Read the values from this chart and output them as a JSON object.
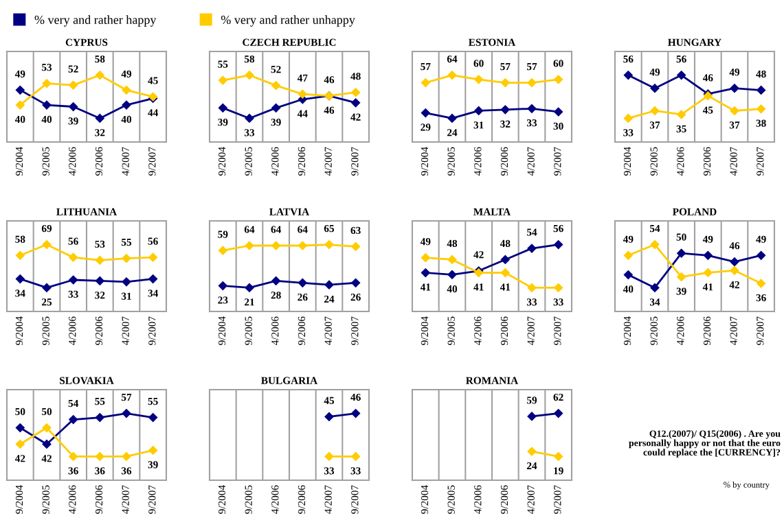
{
  "chart_data": [
    {
      "type": "line",
      "title": "CYPRUS",
      "categories": [
        "9/2004",
        "9/2005",
        "4/2006",
        "9/2006",
        "4/2007",
        "9/2007"
      ],
      "tick_labels": "x",
      "grid": "x",
      "marker": "diamond",
      "data_labels": true,
      "legend": "top right",
      "series": [
        {
          "name": "% very and rather happy",
          "color": "#000080",
          "values": [
            49,
            40,
            39,
            32,
            40,
            44
          ]
        },
        {
          "name": "% very and rather unhappy",
          "color": "#ffcc00",
          "values": [
            40,
            53,
            52,
            58,
            49,
            45
          ]
        }
      ]
    },
    {
      "type": "line",
      "title": "CZECH REPUBLIC",
      "categories": [
        "9/2004",
        "9/2005",
        "4/2006",
        "9/2006",
        "4/2007",
        "9/2007"
      ],
      "tick_labels": "x",
      "grid": "x",
      "marker": "diamond",
      "data_labels": true,
      "series": [
        {
          "color": "#000080",
          "values": [
            39,
            33,
            39,
            44,
            46,
            42
          ]
        },
        {
          "color": "#ffcc00",
          "values": [
            55,
            58,
            52,
            47,
            46,
            48
          ]
        }
      ]
    },
    {
      "type": "line",
      "title": "ESTONIA",
      "categories": [
        "9/2004",
        "9/2005",
        "4/2006",
        "9/2006",
        "4/2007",
        "9/2007"
      ],
      "tick_labels": "x",
      "grid": "x",
      "marker": "diamond",
      "data_labels": true,
      "series": [
        {
          "color": "#000080",
          "values": [
            29,
            24,
            31,
            32,
            33,
            30
          ]
        },
        {
          "color": "#ffcc00",
          "values": [
            57,
            64,
            60,
            57,
            57,
            60
          ]
        }
      ]
    },
    {
      "type": "line",
      "title": "HUNGARY",
      "categories": [
        "9/2004",
        "9/2005",
        "4/2006",
        "9/2006",
        "4/2007",
        "9/2007"
      ],
      "tick_labels": "x",
      "grid": "x",
      "marker": "diamond",
      "data_labels": true,
      "series": [
        {
          "color": "#000080",
          "values": [
            56,
            49,
            56,
            46,
            49,
            48
          ]
        },
        {
          "color": "#ffcc00",
          "values": [
            33,
            37,
            35,
            45,
            37,
            38
          ]
        }
      ]
    },
    {
      "type": "line",
      "title": "LITHUANIA",
      "categories": [
        "9/2004",
        "9/2005",
        "4/2006",
        "9/2006",
        "4/2007",
        "9/2007"
      ],
      "tick_labels": "x",
      "grid": "x",
      "marker": "diamond",
      "data_labels": true,
      "series": [
        {
          "color": "#000080",
          "values": [
            34,
            25,
            33,
            32,
            31,
            34
          ]
        },
        {
          "color": "#ffcc00",
          "values": [
            58,
            69,
            56,
            53,
            55,
            56
          ]
        }
      ]
    },
    {
      "type": "line",
      "title": "LATVIA",
      "categories": [
        "9/2004",
        "9/2005",
        "4/2006",
        "9/2006",
        "4/2007",
        "9/2007"
      ],
      "tick_labels": "x",
      "grid": "x",
      "marker": "diamond",
      "data_labels": true,
      "series": [
        {
          "color": "#000080",
          "values": [
            23,
            21,
            28,
            26,
            24,
            26
          ]
        },
        {
          "color": "#ffcc00",
          "values": [
            59,
            64,
            64,
            64,
            65,
            63
          ]
        }
      ]
    },
    {
      "type": "line",
      "title": "MALTA",
      "categories": [
        "9/2004",
        "9/2005",
        "4/2006",
        "9/2006",
        "4/2007",
        "9/2007"
      ],
      "tick_labels": "x",
      "grid": "x",
      "marker": "diamond",
      "data_labels": true,
      "series": [
        {
          "color": "#000080",
          "values": [
            41,
            40,
            42,
            48,
            54,
            56
          ]
        },
        {
          "color": "#ffcc00",
          "values": [
            49,
            48,
            41,
            41,
            33,
            33
          ]
        }
      ]
    },
    {
      "type": "line",
      "title": "POLAND",
      "categories": [
        "9/2004",
        "9/2005",
        "4/2006",
        "9/2006",
        "4/2007",
        "9/2007"
      ],
      "tick_labels": "x",
      "grid": "x",
      "marker": "diamond",
      "data_labels": true,
      "series": [
        {
          "color": "#000080",
          "values": [
            40,
            34,
            50,
            49,
            46,
            49
          ]
        },
        {
          "color": "#ffcc00",
          "values": [
            49,
            54,
            39,
            41,
            42,
            36
          ]
        }
      ]
    },
    {
      "type": "line",
      "title": "SLOVAKIA",
      "categories": [
        "9/2004",
        "9/2005",
        "4/2006",
        "9/2006",
        "4/2007",
        "9/2007"
      ],
      "tick_labels": "x",
      "grid": "x",
      "marker": "diamond",
      "data_labels": true,
      "series": [
        {
          "color": "#000080",
          "values": [
            50,
            42,
            54,
            55,
            57,
            55
          ]
        },
        {
          "color": "#ffcc00",
          "values": [
            42,
            50,
            36,
            36,
            36,
            39
          ]
        }
      ]
    },
    {
      "type": "line",
      "title": "BULGARIA",
      "categories": [
        "9/2004",
        "9/2005",
        "4/2006",
        "9/2006",
        "4/2007",
        "9/2007"
      ],
      "tick_labels": "x",
      "grid": "x",
      "marker": "diamond",
      "data_labels": true,
      "series": [
        {
          "color": "#000080",
          "values": [
            null,
            null,
            null,
            null,
            45,
            46
          ]
        },
        {
          "color": "#ffcc00",
          "values": [
            null,
            null,
            null,
            null,
            33,
            33
          ]
        }
      ]
    },
    {
      "type": "line",
      "title": "ROMANIA",
      "categories": [
        "9/2004",
        "9/2005",
        "4/2006",
        "9/2006",
        "4/2007",
        "9/2007"
      ],
      "tick_labels": "x",
      "grid": "x",
      "marker": "diamond",
      "data_labels": true,
      "series": [
        {
          "color": "#000080",
          "values": [
            null,
            null,
            null,
            null,
            59,
            62
          ]
        },
        {
          "color": "#ffcc00",
          "values": [
            null,
            null,
            null,
            null,
            24,
            19
          ]
        }
      ]
    },
    {
      "type": "other",
      "annotations": [
        "Q12.(2007)/ Q15(2006) . Are you personally happy or not that the euro could replace the [CURRENCY]?",
        "% by country"
      ]
    }
  ]
}
